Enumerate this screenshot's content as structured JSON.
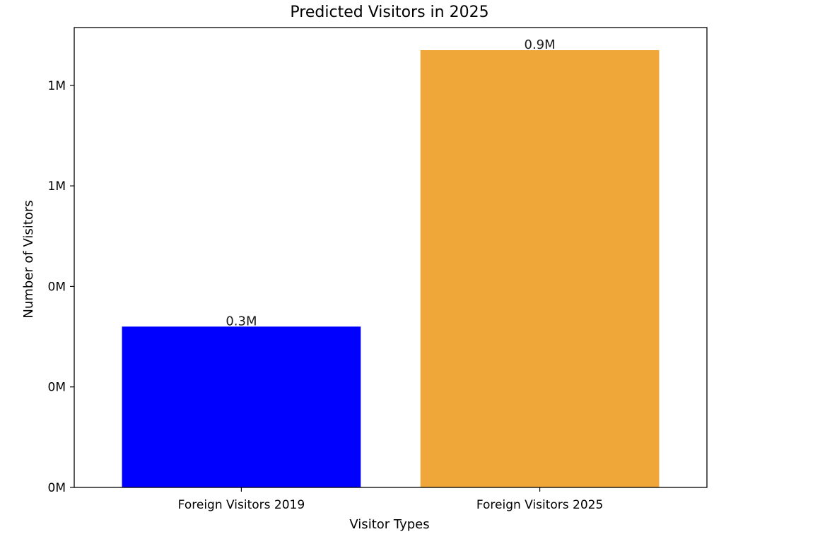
{
  "chart_data": {
    "type": "bar",
    "title": "Predicted Visitors in 2025",
    "xlabel": "Visitor Types",
    "ylabel": "Number of Visitors",
    "categories": [
      "Foreign Visitors 2019",
      "Foreign Visitors 2025"
    ],
    "values": [
      320000,
      870000
    ],
    "colors": [
      "#0000ff",
      "#f0a73a"
    ],
    "data_labels": [
      "0.3M",
      "0.9M"
    ],
    "ylim": [
      0,
      915000
    ],
    "y_ticks": [
      0,
      200000,
      400000,
      600000,
      800000
    ],
    "y_tick_labels": [
      "0M",
      "0M",
      "0M",
      "1M",
      "1M"
    ],
    "grid": false,
    "legend": "none"
  }
}
